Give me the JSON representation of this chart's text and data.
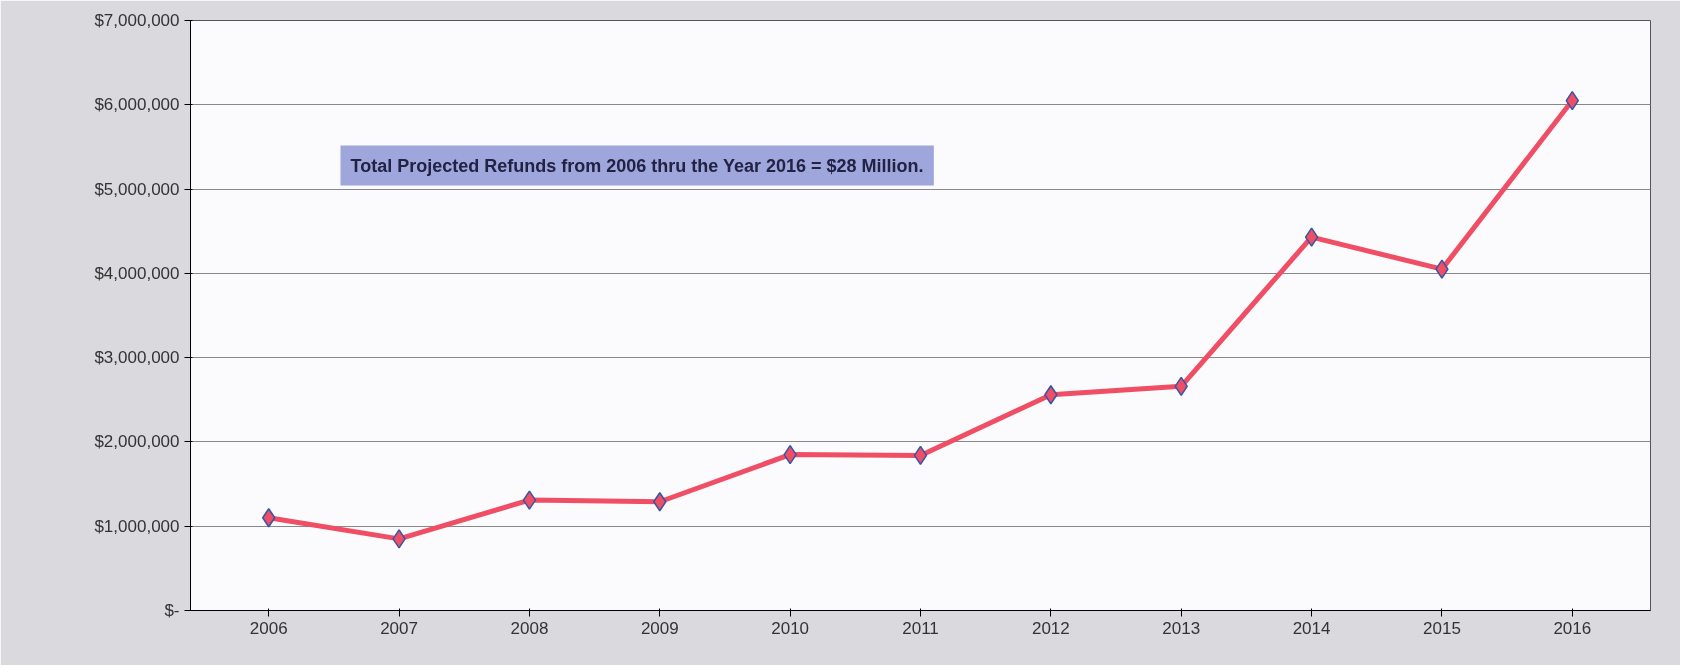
{
  "chart_data": {
    "type": "line",
    "categories": [
      "2006",
      "2007",
      "2008",
      "2009",
      "2010",
      "2011",
      "2012",
      "2013",
      "2014",
      "2015",
      "2016"
    ],
    "series": [
      {
        "color": "#f04e64",
        "values": [
          1100000,
          850000,
          1310000,
          1290000,
          1850000,
          1840000,
          2560000,
          2660000,
          4430000,
          4050000,
          6050000
        ]
      }
    ],
    "ylim": [
      0,
      7000000
    ],
    "yticks": [
      {
        "value": 0,
        "label": "$-"
      },
      {
        "value": 1000000,
        "label": "$1,000,000"
      },
      {
        "value": 2000000,
        "label": "$2,000,000"
      },
      {
        "value": 3000000,
        "label": "$3,000,000"
      },
      {
        "value": 4000000,
        "label": "$4,000,000"
      },
      {
        "value": 5000000,
        "label": "$5,000,000"
      },
      {
        "value": 6000000,
        "label": "$6,000,000"
      },
      {
        "value": 7000000,
        "label": "$7,000,000"
      }
    ],
    "annotations": [
      "Total Projected Refunds from 2006 thru the Year 2016 = $28 Million."
    ],
    "grid": "y",
    "marker": "diamond",
    "line_style": "solid"
  }
}
